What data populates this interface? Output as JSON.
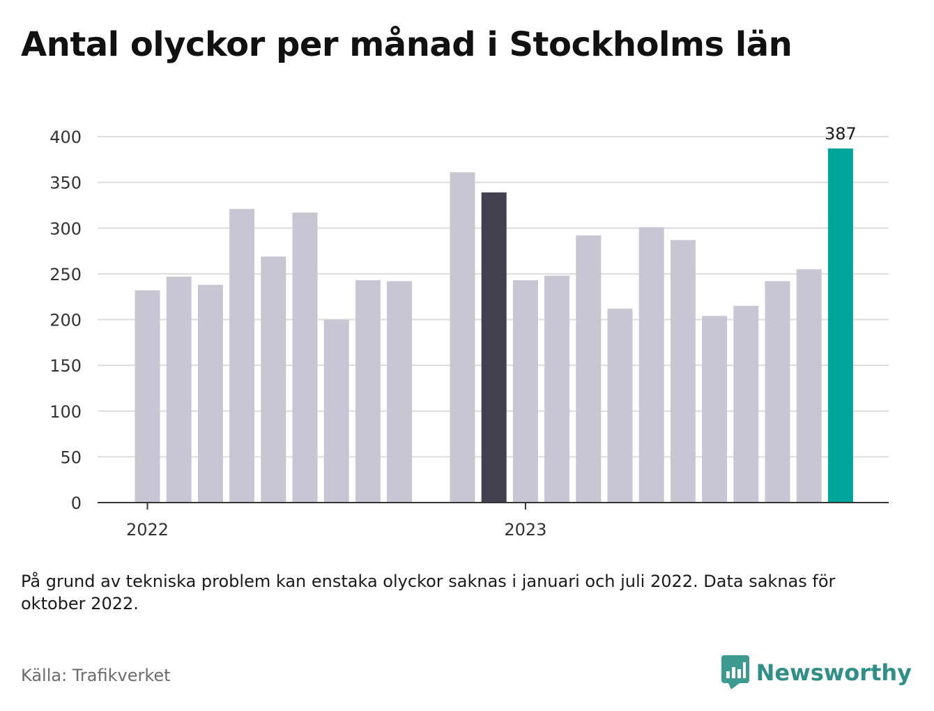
{
  "title": "Antal olyckor per månad i Stockholms län",
  "note": "På grund av tekniska problem kan enstaka olyckor saknas i januari och juli 2022. Data saknas för oktober 2022.",
  "source": "Källa: Trafikverket",
  "brand": {
    "name": "Newsworthy",
    "icon": "newsworthy-logo-icon",
    "color": "#2f8f86"
  },
  "chart_data": {
    "type": "bar",
    "title": "Antal olyckor per månad i Stockholms län",
    "xlabel": "",
    "ylabel": "",
    "ylim": [
      0,
      400
    ],
    "yticks": [
      "0",
      "50",
      "100",
      "150",
      "200",
      "250",
      "300",
      "350",
      "400"
    ],
    "grid": true,
    "year_labels": [
      {
        "label": "2022",
        "month": "2022-01"
      },
      {
        "label": "2023",
        "month": "2023-01"
      }
    ],
    "categories": [
      "2022-01",
      "2022-02",
      "2022-03",
      "2022-04",
      "2022-05",
      "2022-06",
      "2022-07",
      "2022-08",
      "2022-09",
      "2022-10",
      "2022-11",
      "2022-12",
      "2023-01",
      "2023-02",
      "2023-03",
      "2023-04",
      "2023-05",
      "2023-06",
      "2023-07",
      "2023-08",
      "2023-09",
      "2023-10",
      "2023-11",
      "2023-12"
    ],
    "values": [
      232,
      247,
      238,
      321,
      269,
      317,
      200,
      243,
      242,
      null,
      361,
      339,
      243,
      248,
      292,
      212,
      301,
      287,
      204,
      215,
      242,
      255,
      387,
      null
    ],
    "colors": {
      "default": "#c8c6d2",
      "highlight_dark": "#42404e",
      "highlight_latest": "#00a499"
    },
    "highlight_dark_month": "2022-12",
    "highlight_latest_month": "2023-11",
    "data_labels": [
      {
        "month": "2023-11",
        "text": "387"
      }
    ]
  }
}
